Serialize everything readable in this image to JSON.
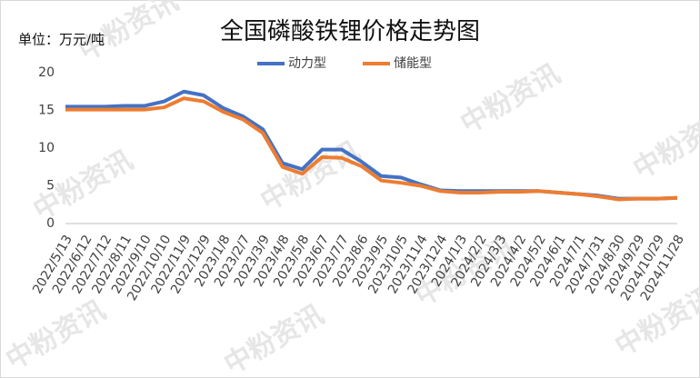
{
  "chart_data": {
    "type": "line",
    "title": "全国磷酸铁锂价格走势图",
    "unit": "单位：万元/吨",
    "watermark": "中粉资讯",
    "legend": "top",
    "x": [
      "2022/5/13",
      "2022/6/12",
      "2022/7/12",
      "2022/8/11",
      "2022/9/10",
      "2022/10/10",
      "2022/11/9",
      "2022/12/9",
      "2023/1/8",
      "2023/2/7",
      "2023/3/9",
      "2023/4/8",
      "2023/5/8",
      "2023/6/7",
      "2023/7/7",
      "2023/8/6",
      "2023/9/5",
      "2023/10/5",
      "2023/11/4",
      "2023/12/4",
      "2024/1/3",
      "2024/2/2",
      "2024/3/3",
      "2024/4/2",
      "2024/5/2",
      "2024/6/1",
      "2024/7/1",
      "2024/7/31",
      "2024/8/30",
      "2024/9/29",
      "2024/10/29",
      "2024/11/28"
    ],
    "series": [
      {
        "name": "动力型",
        "color": "#4472c4",
        "values": [
          15.5,
          15.5,
          15.5,
          15.6,
          15.6,
          16.2,
          17.5,
          17.0,
          15.3,
          14.2,
          12.5,
          8.0,
          7.2,
          9.8,
          9.8,
          8.2,
          6.3,
          6.1,
          5.2,
          4.4,
          4.3,
          4.3,
          4.3,
          4.3,
          4.3,
          4.1,
          3.9,
          3.7,
          3.3,
          3.3,
          3.3,
          3.4
        ]
      },
      {
        "name": "储能型",
        "color": "#ed7d31",
        "values": [
          15.1,
          15.1,
          15.1,
          15.1,
          15.1,
          15.4,
          16.6,
          16.2,
          14.8,
          13.8,
          12.0,
          7.5,
          6.6,
          8.8,
          8.7,
          7.6,
          5.7,
          5.4,
          5.0,
          4.3,
          4.1,
          4.1,
          4.2,
          4.2,
          4.3,
          4.1,
          3.9,
          3.6,
          3.2,
          3.3,
          3.3,
          3.4
        ]
      }
    ],
    "ylim": [
      0,
      20
    ],
    "yticks": [
      0,
      5,
      10,
      15,
      20
    ],
    "grid": false
  }
}
